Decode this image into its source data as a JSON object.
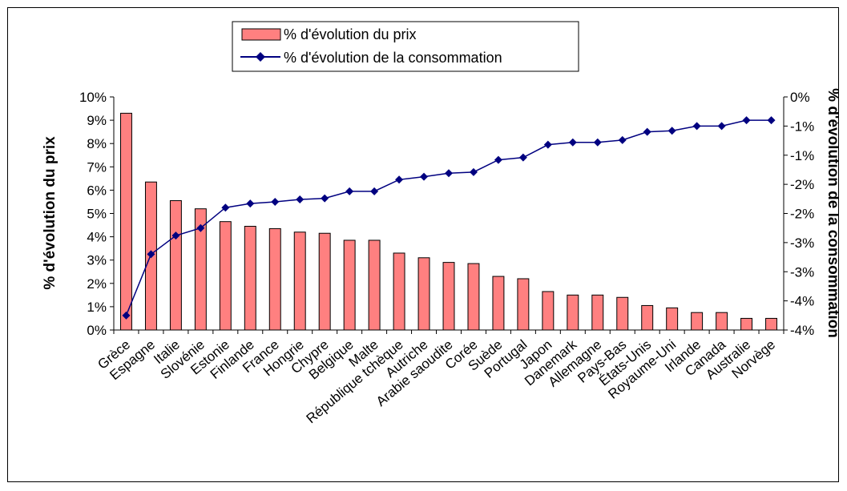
{
  "chart_data": {
    "type": "bar+line",
    "categories": [
      "Grèce",
      "Espagne",
      "Italie",
      "Slovénie",
      "Estonie",
      "Finlande",
      "France",
      "Hongrie",
      "Chypre",
      "Belgique",
      "Malte",
      "République tchèque",
      "Autriche",
      "Arabie saoudite",
      "Corée",
      "Suède",
      "Portugal",
      "Japon",
      "Danemark",
      "Allemagne",
      "Pays-Bas",
      "États-Unis",
      "Royaume-Uni",
      "Irlande",
      "Canada",
      "Australie",
      "Norvège"
    ],
    "series": [
      {
        "name": "% d'évolution du prix",
        "type": "bar",
        "axis": "left",
        "color": "#FF8080",
        "values": [
          9.3,
          6.35,
          5.55,
          5.2,
          4.65,
          4.45,
          4.35,
          4.2,
          4.15,
          3.85,
          3.85,
          3.3,
          3.1,
          2.9,
          2.85,
          2.3,
          2.2,
          1.65,
          1.5,
          1.5,
          1.4,
          1.05,
          0.95,
          0.75,
          0.75,
          0.5,
          0.5
        ]
      },
      {
        "name": "% d'évolution de la consommation",
        "type": "line",
        "axis": "right",
        "color": "#000080",
        "marker": "diamond",
        "values": [
          -3.75,
          -2.7,
          -2.38,
          -2.25,
          -1.9,
          -1.83,
          -1.8,
          -1.76,
          -1.74,
          -1.62,
          -1.62,
          -1.42,
          -1.37,
          -1.31,
          -1.29,
          -1.08,
          -1.04,
          -0.82,
          -0.78,
          -0.78,
          -0.74,
          -0.6,
          -0.58,
          -0.5,
          -0.5,
          -0.4,
          -0.4
        ]
      }
    ],
    "y_left": {
      "label": "% d'évolution du prix",
      "range": [
        0,
        10
      ],
      "ticks": [
        "0%",
        "1%",
        "2%",
        "3%",
        "4%",
        "5%",
        "6%",
        "7%",
        "8%",
        "9%",
        "10%"
      ]
    },
    "y_right": {
      "label": "% d'évolution de la consommation",
      "range": [
        -4,
        0
      ],
      "ticks": [
        "-4%",
        "-4%",
        "-3%",
        "-3%",
        "-2%",
        "-2%",
        "-1%",
        "-1%",
        "0%"
      ]
    },
    "legend": {
      "position": "top-center",
      "entries": [
        "% d'évolution du prix",
        "% d'évolution de la consommation"
      ]
    },
    "grid": false
  }
}
